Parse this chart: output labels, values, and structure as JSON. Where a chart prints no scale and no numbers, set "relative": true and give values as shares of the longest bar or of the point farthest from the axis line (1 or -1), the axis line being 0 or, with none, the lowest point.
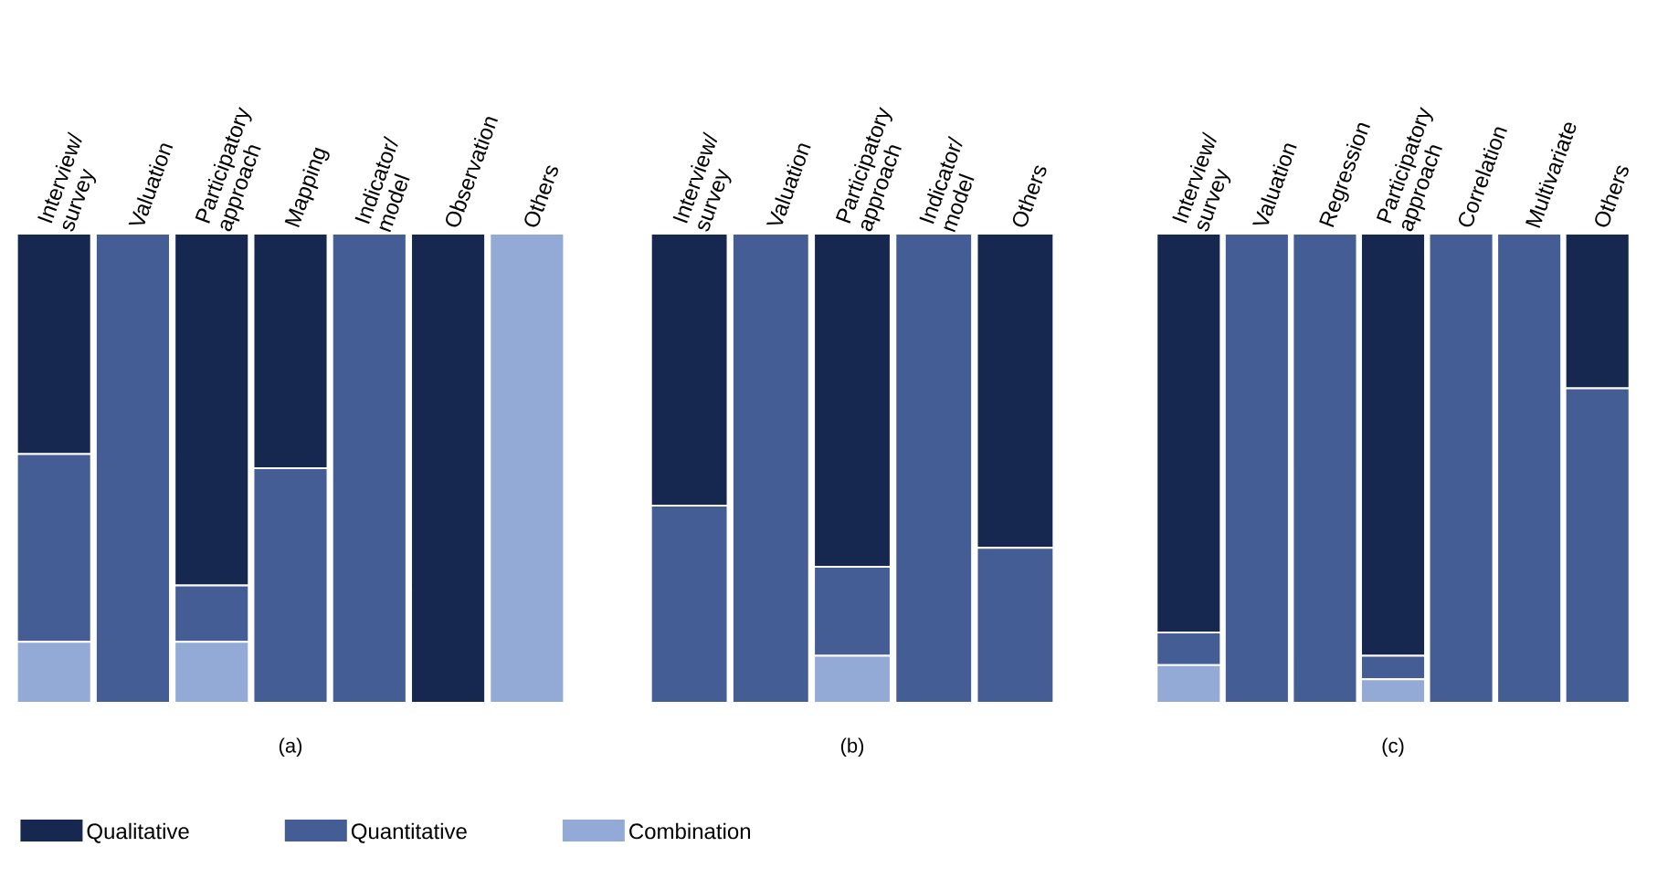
{
  "chart_data": [
    {
      "type": "bar",
      "stacked": true,
      "relative": true,
      "xlabel": "(a)",
      "legend": "bottom",
      "categories": [
        "Interview/ survey",
        "Valuation",
        "Participatory approach",
        "Mapping",
        "Indicator/ model",
        "Observation",
        "Others"
      ],
      "series": [
        {
          "name": "Combination",
          "color": "#93a9d6",
          "values": [
            0.13,
            0,
            0.13,
            0,
            0,
            0,
            1
          ]
        },
        {
          "name": "Quantitative",
          "color": "#445d94",
          "values": [
            0.4,
            1,
            0.12,
            0.5,
            1,
            0,
            0
          ]
        },
        {
          "name": "Qualitative",
          "color": "#16284f",
          "values": [
            0.47,
            0,
            0.75,
            0.5,
            0,
            1,
            0
          ]
        }
      ]
    },
    {
      "type": "bar",
      "stacked": true,
      "relative": true,
      "xlabel": "(b)",
      "categories": [
        "Interview/ survey",
        "Valuation",
        "Participatory approach",
        "Indicator/ model",
        "Others"
      ],
      "series": [
        {
          "color": "#93a9d6",
          "values": [
            0,
            0,
            0.1,
            0,
            0
          ]
        },
        {
          "color": "#445d94",
          "values": [
            0.42,
            1,
            0.19,
            1,
            0.33
          ]
        },
        {
          "color": "#16284f",
          "values": [
            0.58,
            0,
            0.71,
            0,
            0.67
          ]
        }
      ]
    },
    {
      "type": "bar",
      "stacked": true,
      "relative": true,
      "xlabel": "(c)",
      "categories": [
        "Interview/ survey",
        "Valuation",
        "Regression",
        "Participatory approach",
        "Correlation",
        "Multivariate",
        "Others"
      ],
      "series": [
        {
          "color": "#93a9d6",
          "values": [
            0.08,
            0,
            0,
            0.05,
            0,
            0,
            0
          ]
        },
        {
          "color": "#445d94",
          "values": [
            0.07,
            1,
            1,
            0.05,
            1,
            1,
            0.67
          ]
        },
        {
          "color": "#16284f",
          "values": [
            0.85,
            0,
            0,
            0.9,
            0,
            0,
            0.33
          ]
        }
      ]
    }
  ]
}
